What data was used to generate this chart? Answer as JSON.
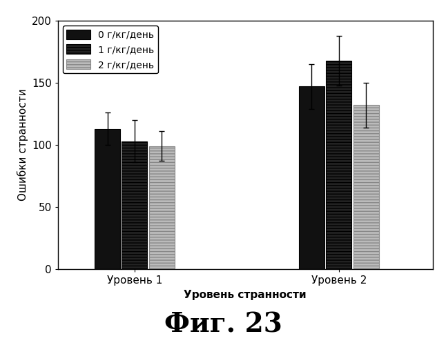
{
  "groups": [
    "Уровень 1",
    "Уровень 2"
  ],
  "series": [
    {
      "label": "0 г/кг/день",
      "facecolor": "#111111",
      "edgecolor": "#000000",
      "hatch": "",
      "values": [
        113,
        147
      ],
      "errors": [
        13,
        18
      ]
    },
    {
      "label": "1 г/кг/день",
      "facecolor": "#222222",
      "edgecolor": "#000000",
      "hatch": "----",
      "values": [
        103,
        168
      ],
      "errors": [
        17,
        20
      ]
    },
    {
      "label": "2 г/кг/день",
      "facecolor": "#bbbbbb",
      "edgecolor": "#888888",
      "hatch": "----",
      "values": [
        99,
        132
      ],
      "errors": [
        12,
        18
      ]
    }
  ],
  "ylim": [
    0,
    200
  ],
  "yticks": [
    0,
    50,
    100,
    150,
    200
  ],
  "ylabel": "Ошибки странности",
  "xlabel": "Уровень странности",
  "title": "Фиг. 23",
  "bar_width": 0.15,
  "group_centers": [
    1.0,
    2.2
  ],
  "xlim": [
    0.55,
    2.75
  ],
  "background_color": "#ffffff",
  "fig_title_fontsize": 28,
  "axis_label_fontsize": 11,
  "tick_label_fontsize": 11,
  "legend_fontsize": 10
}
